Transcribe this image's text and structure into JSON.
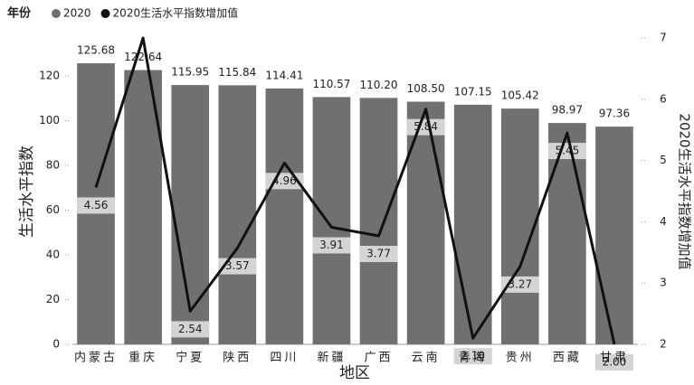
{
  "chart_data": {
    "type": "bar-line",
    "legend_title": "年份",
    "x_label": "地区",
    "y_label": "生活水平指数",
    "y2_label": "2020生活水平指数增加值",
    "categories": [
      "内蒙古",
      "重庆",
      "宁夏",
      "陕西",
      "四川",
      "新疆",
      "广西",
      "云南",
      "青海",
      "贵州",
      "西藏",
      "甘肃"
    ],
    "series": [
      {
        "name": "2020",
        "type": "bar",
        "color": "#707070",
        "values": [
          125.68,
          122.64,
          115.95,
          115.84,
          114.41,
          110.57,
          110.2,
          108.5,
          107.15,
          105.42,
          98.97,
          97.36
        ],
        "value_labels": [
          "125.68",
          "122.64",
          "115.95",
          "115.84",
          "114.41",
          "110.57",
          "110.20",
          "108.50",
          "107.15",
          "105.42",
          "98.97",
          "97.36"
        ]
      },
      {
        "name": "2020生活水平指数增加值",
        "type": "line",
        "axis": "y2",
        "color": "#111111",
        "values": [
          4.56,
          7.0,
          2.54,
          3.57,
          4.96,
          3.91,
          3.77,
          5.84,
          2.1,
          3.27,
          5.45,
          2.0
        ],
        "value_labels": [
          "4.56",
          null,
          "2.54",
          "3.57",
          "4.96",
          "3.91",
          "3.77",
          "5.84",
          "2.10",
          "3.27",
          "5.45",
          "2.00"
        ]
      }
    ],
    "ylim": [
      0,
      137
    ],
    "yticks": [
      0,
      20,
      40,
      60,
      80,
      100,
      120
    ],
    "y2lim": [
      2,
      7
    ],
    "y2ticks": [
      2,
      3,
      4,
      5,
      6,
      7
    ]
  }
}
